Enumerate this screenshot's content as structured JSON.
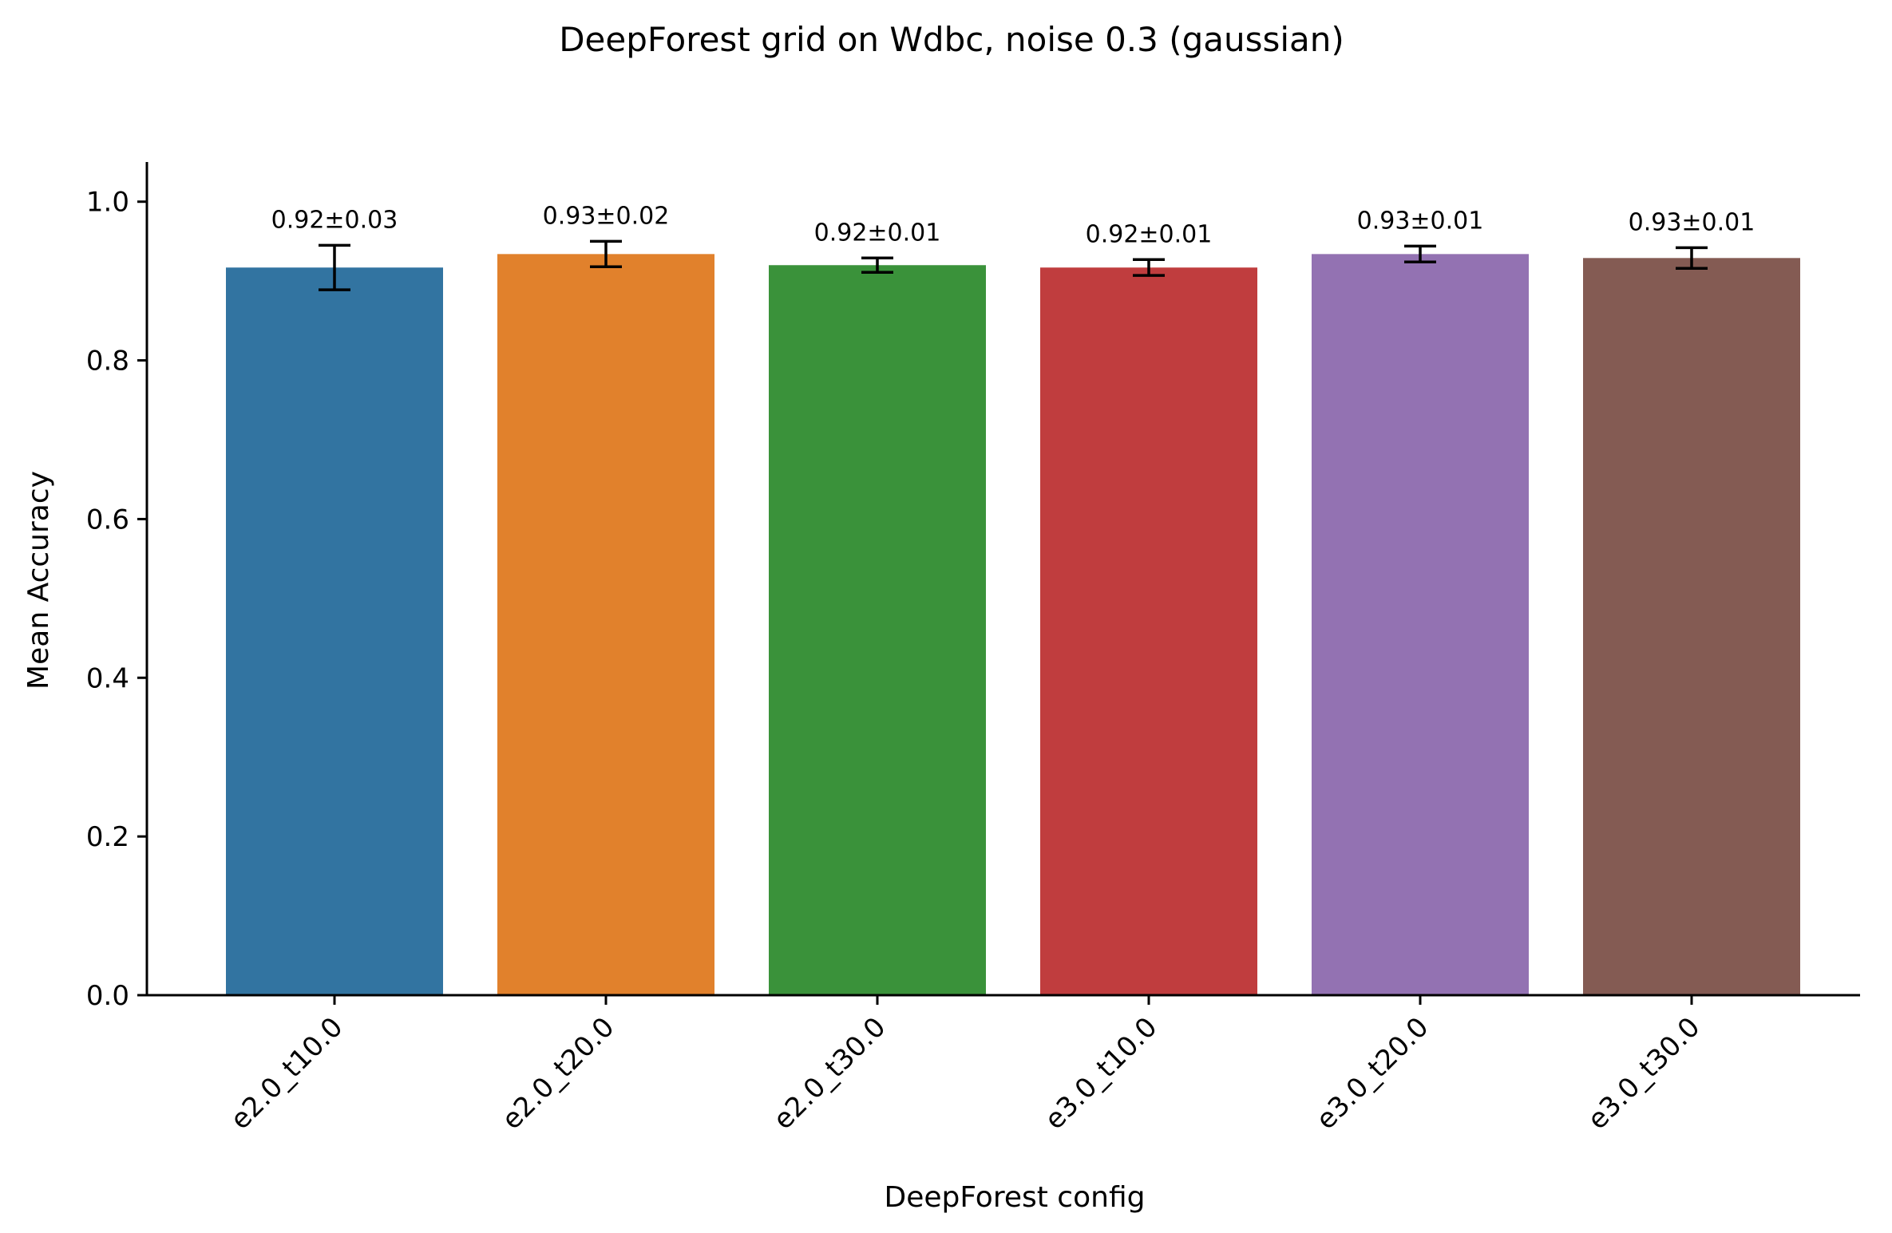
{
  "chart_data": {
    "type": "bar",
    "title": "DeepForest grid on Wdbc, noise 0.3 (gaussian)",
    "xlabel": "DeepForest config",
    "ylabel": "Mean Accuracy",
    "ylim": [
      0,
      1.05
    ],
    "yticks": [
      "0.0",
      "0.2",
      "0.4",
      "0.6",
      "0.8",
      "1.0"
    ],
    "grid": false,
    "categories": [
      "e2.0_t10.0",
      "e2.0_t20.0",
      "e2.0_t30.0",
      "e3.0_t10.0",
      "e3.0_t20.0",
      "e3.0_t30.0"
    ],
    "values": [
      0.917,
      0.934,
      0.92,
      0.917,
      0.934,
      0.929
    ],
    "errors": [
      0.028,
      0.016,
      0.009,
      0.01,
      0.01,
      0.013
    ],
    "data_labels": [
      "0.92±0.03",
      "0.93±0.02",
      "0.92±0.01",
      "0.92±0.01",
      "0.93±0.01",
      "0.93±0.01"
    ],
    "colors": [
      "#3274a1",
      "#e1812c",
      "#3a923a",
      "#c03d3e",
      "#9372b2",
      "#845b53"
    ]
  }
}
